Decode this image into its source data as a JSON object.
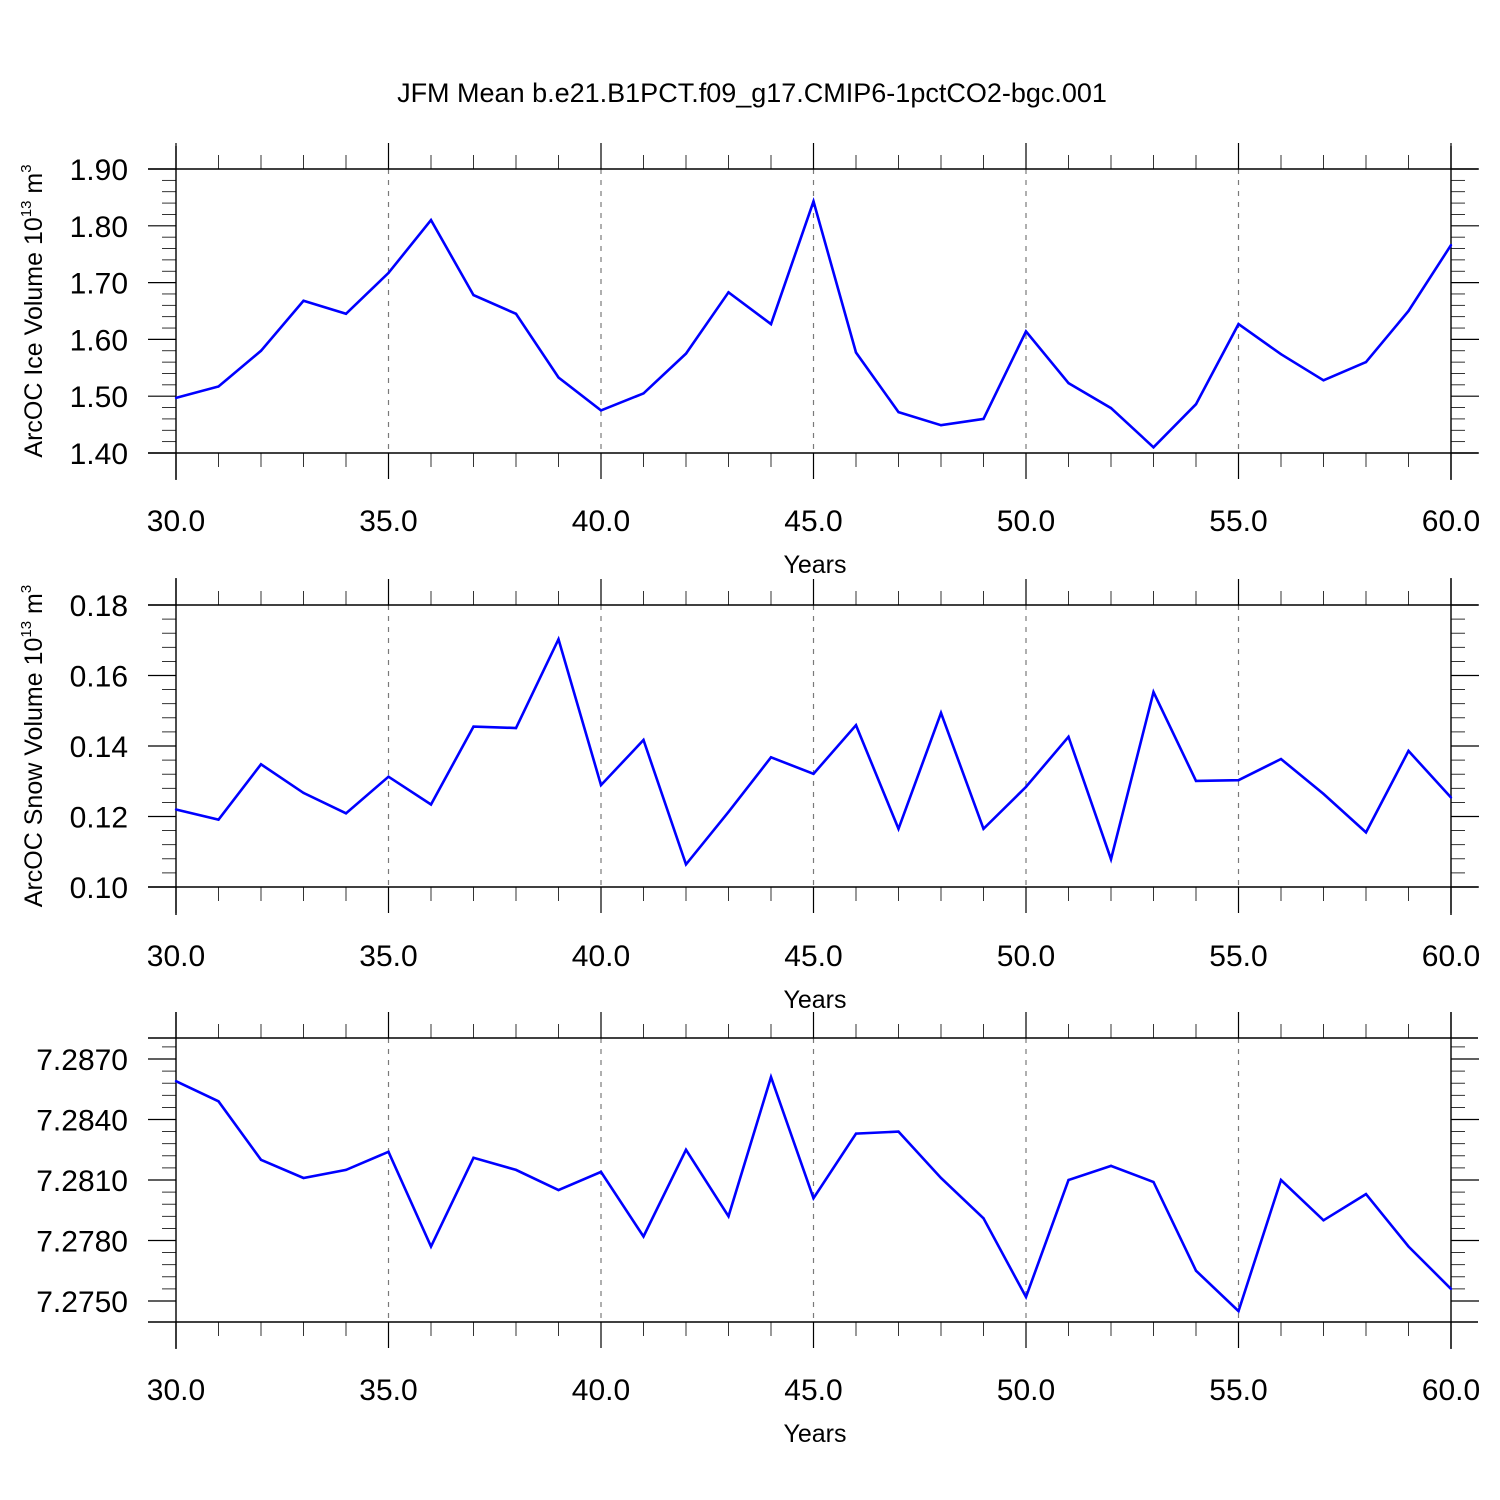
{
  "title": "JFM Mean b.e21.B1PCT.f09_g17.CMIP6-1pctCO2-bgc.001",
  "line_color": "#0000ff",
  "chart_data": [
    {
      "type": "line",
      "xlabel": "Years",
      "ylabel": "ArcOC Ice Volume 10",
      "ylabel_sup": "13",
      "ylabel_unit": " m",
      "ylabel_unit_sup": "3",
      "xlim": [
        30,
        60
      ],
      "ylim": [
        1.4,
        1.9
      ],
      "xticks": [
        30,
        35,
        40,
        45,
        50,
        55,
        60
      ],
      "xtick_labels": [
        "30.0",
        "35.0",
        "40.0",
        "45.0",
        "50.0",
        "55.0",
        "60.0"
      ],
      "yticks": [
        1.4,
        1.5,
        1.6,
        1.7,
        1.8,
        1.9
      ],
      "ytick_labels": [
        "1.40",
        "1.50",
        "1.60",
        "1.70",
        "1.80",
        "1.90"
      ],
      "grid": "vertical dashed at major x ticks",
      "x": [
        30,
        31,
        32,
        33,
        34,
        35,
        36,
        37,
        38,
        39,
        40,
        41,
        42,
        43,
        44,
        45,
        46,
        47,
        48,
        49,
        50,
        51,
        52,
        53,
        54,
        55,
        56,
        57,
        58,
        59,
        60
      ],
      "y": [
        1.497,
        1.517,
        1.58,
        1.668,
        1.645,
        1.717,
        1.81,
        1.678,
        1.645,
        1.533,
        1.475,
        1.505,
        1.575,
        1.683,
        1.627,
        1.843,
        1.577,
        1.472,
        1.449,
        1.46,
        1.614,
        1.523,
        1.479,
        1.41,
        1.486,
        1.627,
        1.574,
        1.528,
        1.56,
        1.65,
        1.766
      ]
    },
    {
      "type": "line",
      "xlabel": "Years",
      "ylabel": "ArcOC Snow Volume 10",
      "ylabel_sup": "13",
      "ylabel_unit": " m",
      "ylabel_unit_sup": "3",
      "xlim": [
        30,
        60
      ],
      "ylim": [
        0.1,
        0.18
      ],
      "xticks": [
        30,
        35,
        40,
        45,
        50,
        55,
        60
      ],
      "xtick_labels": [
        "30.0",
        "35.0",
        "40.0",
        "45.0",
        "50.0",
        "55.0",
        "60.0"
      ],
      "yticks": [
        0.1,
        0.12,
        0.14,
        0.16,
        0.18
      ],
      "ytick_labels": [
        "0.10",
        "0.12",
        "0.14",
        "0.16",
        "0.18"
      ],
      "grid": "vertical dashed at major x ticks",
      "x": [
        30,
        31,
        32,
        33,
        34,
        35,
        36,
        37,
        38,
        39,
        40,
        41,
        42,
        43,
        44,
        45,
        46,
        47,
        48,
        49,
        50,
        51,
        52,
        53,
        54,
        55,
        56,
        57,
        58,
        59,
        60
      ],
      "y": [
        0.122,
        0.1191,
        0.1348,
        0.1267,
        0.1209,
        0.1313,
        0.1234,
        0.1455,
        0.1451,
        0.1703,
        0.1289,
        0.1417,
        0.1064,
        0.1213,
        0.1368,
        0.1321,
        0.1459,
        0.1165,
        0.1494,
        0.1165,
        0.1284,
        0.1426,
        0.1079,
        0.1553,
        0.1301,
        0.1303,
        0.1363,
        0.1264,
        0.1155,
        0.1386,
        0.1254
      ]
    },
    {
      "type": "line",
      "xlabel": "Years",
      "ylabel": "",
      "xlim": [
        30,
        60
      ],
      "ylim": [
        7.2747,
        7.288
      ],
      "xticks": [
        30,
        35,
        40,
        45,
        50,
        55,
        60
      ],
      "xtick_labels": [
        "30.0",
        "35.0",
        "40.0",
        "45.0",
        "50.0",
        "55.0",
        "60.0"
      ],
      "yticks": [
        7.275,
        7.278,
        7.281,
        7.284,
        7.287
      ],
      "ytick_labels": [
        "7.2750",
        "7.2780",
        "7.2810",
        "7.2840",
        "7.2870"
      ],
      "grid": "vertical dashed at major x ticks",
      "x": [
        30,
        31,
        32,
        33,
        34,
        35,
        36,
        37,
        38,
        39,
        40,
        41,
        42,
        43,
        44,
        45,
        46,
        47,
        48,
        49,
        50,
        51,
        52,
        53,
        54,
        55,
        56,
        57,
        58,
        59,
        60
      ],
      "y": [
        7.2859,
        7.2849,
        7.282,
        7.2811,
        7.2815,
        7.2824,
        7.2777,
        7.2821,
        7.2815,
        7.2805,
        7.2814,
        7.2782,
        7.2825,
        7.2792,
        7.2861,
        7.2801,
        7.2833,
        7.2834,
        7.2811,
        7.2791,
        7.2752,
        7.281,
        7.2817,
        7.2809,
        7.2765,
        7.2745,
        7.281,
        7.279,
        7.2803,
        7.2777,
        7.2756
      ]
    }
  ]
}
